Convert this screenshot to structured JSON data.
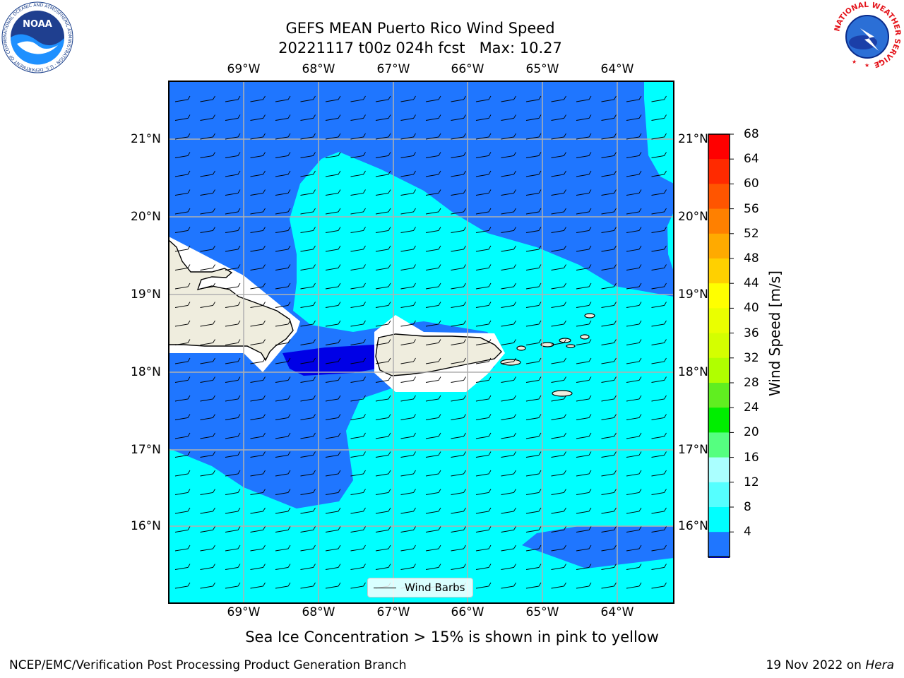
{
  "title": {
    "line1": "GEFS MEAN Puerto Rico Wind Speed",
    "line2": "20221117 t00z 024h fcst   Max: 10.27"
  },
  "map": {
    "lon_labels": [
      "69°W",
      "68°W",
      "67°W",
      "66°W",
      "65°W",
      "64°W"
    ],
    "lat_labels": [
      "21°N",
      "20°N",
      "19°N",
      "18°N",
      "17°N",
      "16°N"
    ],
    "lon_extent": [
      -70.0,
      -63.25
    ],
    "lat_extent": [
      15.0,
      21.75
    ],
    "legend_label": "Wind Barbs",
    "land_color": "#efedde",
    "ocean_color_4_8": "#1f76ff",
    "ocean_color_8_12": "#00ffff",
    "ocean_color_0_4": "#0000e6"
  },
  "colorbar": {
    "label": "Wind Speed [m/s]",
    "ticks": [
      "68",
      "64",
      "60",
      "56",
      "52",
      "48",
      "44",
      "40",
      "36",
      "32",
      "28",
      "24",
      "20",
      "16",
      "12",
      "8",
      "4"
    ],
    "colors_top_to_bottom": [
      "#ff0000",
      "#ff2a00",
      "#ff5500",
      "#ff8000",
      "#ffaa00",
      "#ffd000",
      "#ffff00",
      "#eaff00",
      "#d4ff00",
      "#b0ff00",
      "#60ee20",
      "#00ee00",
      "#55ff80",
      "#aaffff",
      "#55ffff",
      "#00ffff",
      "#1f76ff"
    ],
    "extend_color": "#0000e6"
  },
  "caption": "Sea Ice Concentration > 15% is shown in pink to yellow",
  "footer": {
    "left": "NCEP/EMC/Verification Post Processing Product Generation Branch",
    "right_prefix": "19 Nov 2022 on ",
    "right_italic": "Hera"
  },
  "logos": {
    "left": "NOAA",
    "left_ring_text": "NATIONAL OCEANIC AND ATMOSPHERIC ADMINISTRATION · U.S. DEPARTMENT OF COMMERCE",
    "right_ring_text": "NATIONAL WEATHER SERVICE"
  }
}
